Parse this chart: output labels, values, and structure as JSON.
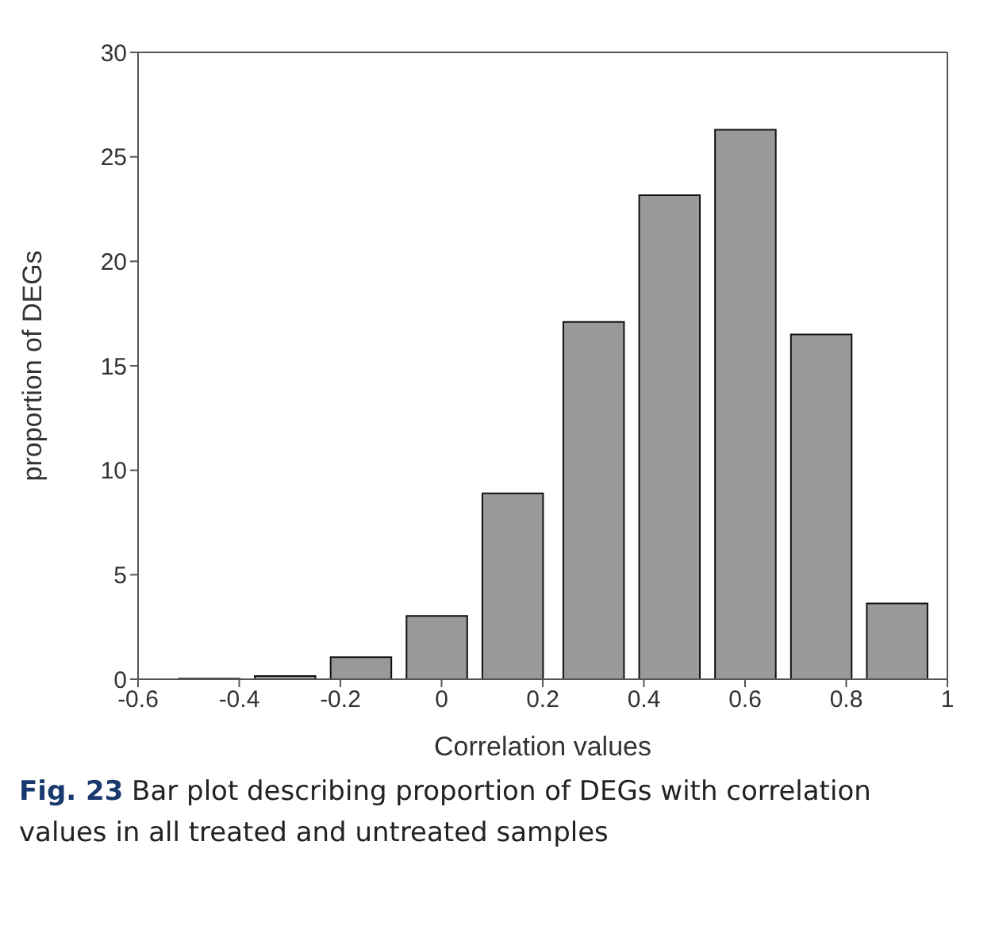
{
  "chart_data": {
    "type": "bar",
    "x": [
      -0.46,
      -0.31,
      -0.16,
      -0.01,
      0.14,
      0.3,
      0.45,
      0.6,
      0.75,
      0.9
    ],
    "values": [
      0.03,
      0.15,
      1.05,
      3.03,
      8.9,
      17.1,
      23.16,
      26.3,
      16.5,
      3.63
    ],
    "color": "#999999",
    "xlabel": "Correlation values",
    "ylabel": "proportion of DEGs",
    "xlim": [
      -0.6,
      1
    ],
    "xticks": [
      -0.6,
      -0.4,
      -0.2,
      0,
      0.2,
      0.4,
      0.6,
      0.8,
      1
    ],
    "ylim": [
      0,
      30
    ],
    "yticks": [
      0,
      5,
      10,
      15,
      20,
      25,
      30
    ],
    "grid": false,
    "legend": false,
    "annotations": [
      "Fig. 23 Bar plot describing proportion of DEGs with correlation values in all treated and untreated samples"
    ]
  }
}
